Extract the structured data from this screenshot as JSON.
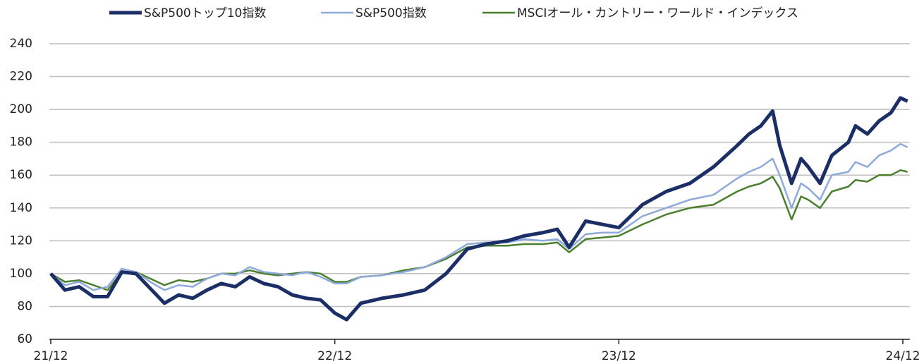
{
  "chart_data": {
    "type": "line",
    "x": [
      0,
      0.6,
      1.2,
      1.8,
      2.4,
      3,
      3.6,
      4.2,
      4.8,
      5.4,
      6,
      6.6,
      7.2,
      7.8,
      8.4,
      9,
      9.6,
      10.2,
      10.8,
      11.4,
      12,
      12.5,
      13.1,
      14,
      14.9,
      15.8,
      16.7,
      17.6,
      18.4,
      19.3,
      20,
      20.8,
      21.4,
      21.9,
      22.6,
      23.3,
      24,
      25,
      26,
      27,
      28,
      29,
      29.5,
      30,
      30.5,
      30.8,
      31.3,
      31.7,
      32,
      32.5,
      33,
      33.7,
      34,
      34.5,
      35,
      35.5,
      35.9,
      36.2
    ],
    "series": [
      {
        "name": "S&P500トップ10指数",
        "color": "#1b2f66",
        "width": 5,
        "values": [
          100,
          90,
          92,
          86,
          86,
          101,
          100,
          91,
          82,
          87,
          85,
          90,
          94,
          92,
          98,
          94,
          92,
          87,
          85,
          84,
          76,
          72,
          82,
          85,
          87,
          90,
          100,
          115,
          118,
          120,
          123,
          125,
          127,
          116,
          132,
          130,
          128,
          142,
          150,
          155,
          165,
          178,
          185,
          190,
          199,
          178,
          155,
          170,
          165,
          155,
          172,
          180,
          190,
          185,
          193,
          198,
          207,
          205
        ]
      },
      {
        "name": "S&P500指数",
        "color": "#8eaadb",
        "width": 2.5,
        "values": [
          100,
          93,
          95,
          90,
          92,
          103,
          101,
          95,
          90,
          93,
          92,
          97,
          100,
          99,
          104,
          101,
          100,
          99,
          101,
          98,
          94,
          94,
          98,
          99,
          101,
          104,
          110,
          118,
          119,
          119,
          121,
          120,
          121,
          115,
          124,
          125,
          125,
          135,
          140,
          145,
          148,
          158,
          162,
          165,
          170,
          160,
          140,
          155,
          152,
          145,
          160,
          162,
          168,
          165,
          172,
          175,
          179,
          177
        ]
      },
      {
        "name": "MSCIオール・カントリー・ワールド・インデックス",
        "color": "#4a7f2e",
        "width": 2.5,
        "values": [
          100,
          95,
          96,
          93,
          90,
          101,
          101,
          97,
          93,
          96,
          95,
          97,
          100,
          100,
          102,
          100,
          99,
          100,
          101,
          100,
          95,
          95,
          98,
          99,
          102,
          104,
          109,
          116,
          117,
          117,
          118,
          118,
          119,
          113,
          121,
          122,
          123,
          130,
          136,
          140,
          142,
          150,
          153,
          155,
          159,
          152,
          133,
          147,
          145,
          140,
          150,
          153,
          157,
          156,
          160,
          160,
          163,
          162
        ]
      }
    ],
    "xlim": [
      0,
      36
    ],
    "xticks": [
      {
        "value": 0,
        "label": "21/12"
      },
      {
        "value": 12,
        "label": "22/12"
      },
      {
        "value": 24,
        "label": "23/12"
      },
      {
        "value": 36,
        "label": "24/12"
      }
    ],
    "ylim": [
      60,
      240
    ],
    "yticks": [
      60,
      80,
      100,
      120,
      140,
      160,
      180,
      200,
      220,
      240
    ],
    "grid": true
  }
}
